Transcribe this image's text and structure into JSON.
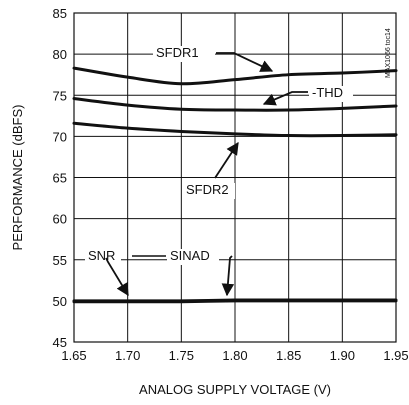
{
  "chart_data": {
    "type": "line",
    "title": "",
    "xlabel": "ANALOG SUPPLY VOLTAGE (V)",
    "ylabel": "PERFORMANCE (dBFS)",
    "xlim": [
      1.65,
      1.95
    ],
    "ylim": [
      45,
      85
    ],
    "grid": true,
    "x_ticks": [
      "1.65",
      "1.70",
      "1.75",
      "1.80",
      "1.85",
      "1.90",
      "1.95"
    ],
    "y_ticks": [
      "45",
      "50",
      "55",
      "60",
      "65",
      "70",
      "75",
      "80",
      "85"
    ],
    "watermark": "MAX1066 toc14",
    "series": [
      {
        "name": "SFDR1",
        "x": [
          1.65,
          1.7,
          1.75,
          1.8,
          1.85,
          1.9,
          1.95
        ],
        "y": [
          78.3,
          77.2,
          76.4,
          76.9,
          77.5,
          77.7,
          78.0
        ]
      },
      {
        "name": "-THD",
        "x": [
          1.65,
          1.7,
          1.75,
          1.8,
          1.85,
          1.9,
          1.95
        ],
        "y": [
          74.6,
          73.8,
          73.3,
          73.2,
          73.2,
          73.4,
          73.7
        ]
      },
      {
        "name": "SFDR2",
        "x": [
          1.65,
          1.7,
          1.75,
          1.8,
          1.85,
          1.9,
          1.95
        ],
        "y": [
          71.6,
          71.0,
          70.6,
          70.3,
          70.1,
          70.1,
          70.2
        ]
      },
      {
        "name": "SNR",
        "x": [
          1.65,
          1.7,
          1.75,
          1.8,
          1.85,
          1.9,
          1.95
        ],
        "y": [
          50.0,
          50.0,
          50.0,
          50.1,
          50.1,
          50.1,
          50.1
        ]
      },
      {
        "name": "SINAD",
        "x": [
          1.65,
          1.7,
          1.75,
          1.8,
          1.85,
          1.9,
          1.95
        ],
        "y": [
          49.9,
          49.9,
          49.9,
          50.0,
          50.0,
          50.0,
          50.0
        ]
      }
    ],
    "annotations": [
      {
        "series": "SFDR1",
        "text": "SFDR1"
      },
      {
        "series": "-THD",
        "text": "-THD"
      },
      {
        "series": "SFDR2",
        "text": "SFDR2"
      },
      {
        "series": "SNR",
        "text": "SNR"
      },
      {
        "series": "SINAD",
        "text": "SINAD"
      }
    ]
  }
}
